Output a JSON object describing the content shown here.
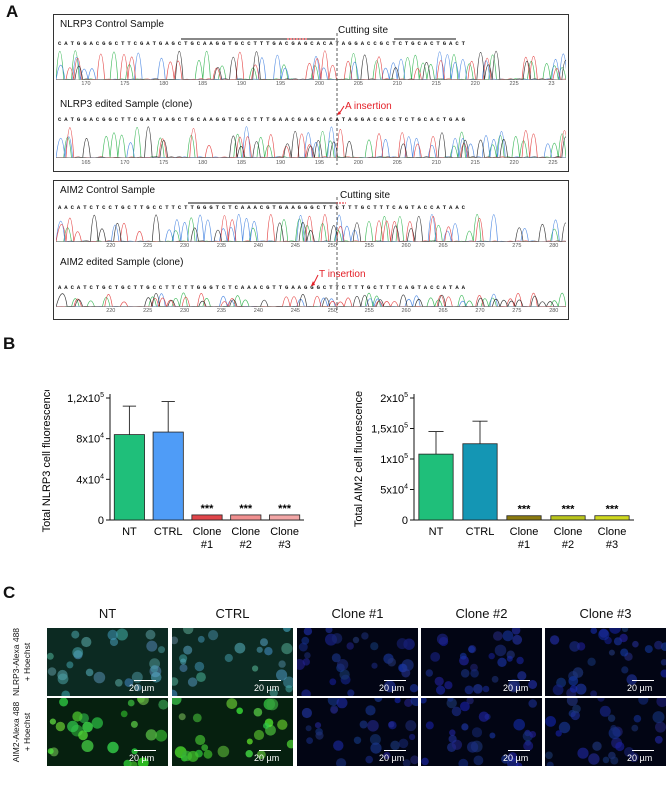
{
  "panelA": {
    "letter": "A",
    "nlrp3": {
      "control_title": "NLRP3 Control Sample",
      "edited_title": "NLRP3 edited Sample (clone)",
      "cutting_site": "Cutting site",
      "insertion": "A insertion",
      "control_seq": "CATGGACGGCTTCGATGAGCTGCAAGGTGCCTTTGACGAGCACATAGGACCGCTCTGCACTGACT",
      "edited_seq": "CATGGACGGCTTCGATGAGCTGCAAGGTGCCTTTGAACGAGCACATAGGACCGCTCTGCACTGAG",
      "control_ticks": [
        "170",
        "175",
        "180",
        "185",
        "190",
        "195",
        "200",
        "205",
        "210",
        "215",
        "220",
        "225",
        "23"
      ],
      "edited_ticks": [
        "165",
        "170",
        "175",
        "180",
        "185",
        "190",
        "195",
        "200",
        "205",
        "210",
        "215",
        "220",
        "225"
      ]
    },
    "aim2": {
      "control_title": "AIM2 Control Sample",
      "edited_title": "AIM2 edited Sample (clone)",
      "cutting_site": "Cutting site",
      "insertion": "T insertion",
      "control_seq": "AACATCTCCTGCTTGCCTTCTTGGGTCTCAAACGTGAAGGGCTTCTTTGCTTTCAGTACCATAAC",
      "edited_seq": "AACATCTGCTGCTTGCCTTCTTGGGTCTCAAACGTTGAAGGGCTTCTTTGCTTTCAGTACCATAA",
      "control_ticks": [
        "220",
        "225",
        "230",
        "235",
        "240",
        "245",
        "250",
        "255",
        "260",
        "265",
        "270",
        "275",
        "280"
      ],
      "edited_ticks": [
        "220",
        "225",
        "230",
        "235",
        "240",
        "245",
        "250",
        "255",
        "260",
        "265",
        "270",
        "275",
        "280"
      ]
    }
  },
  "panelB": {
    "letter": "B",
    "significance": "***"
  },
  "chart_data": [
    {
      "type": "bar",
      "ylabel": "Total  NLRP3 cell fluorescence",
      "categories": [
        "NT",
        "CTRL",
        "Clone #1",
        "Clone #2",
        "Clone #3"
      ],
      "category_lines": [
        [
          "NT"
        ],
        [
          "CTRL"
        ],
        [
          "Clone",
          "#1"
        ],
        [
          "Clone",
          "#2"
        ],
        [
          "Clone",
          "#3"
        ]
      ],
      "values": [
        84000,
        86500,
        5000,
        5000,
        5000
      ],
      "errors": [
        28000,
        30000,
        500,
        500,
        500
      ],
      "significance": [
        "",
        "",
        "***",
        "***",
        "***"
      ],
      "colors": [
        "#1fbf7a",
        "#4f9cf7",
        "#e0454a",
        "#f08f8f",
        "#f2a6a6"
      ],
      "ylim": [
        0,
        120000
      ],
      "yticks": [
        {
          "base": "0",
          "exp": ""
        },
        {
          "base": "4x10",
          "exp": "4"
        },
        {
          "base": "8x10",
          "exp": "4"
        },
        {
          "base": "1,2x10",
          "exp": "5"
        }
      ],
      "ytick_values": [
        0,
        40000,
        80000,
        120000
      ]
    },
    {
      "type": "bar",
      "ylabel": "Total  AIM2 cell fluorescence",
      "categories": [
        "NT",
        "CTRL",
        "Clone #1",
        "Clone #2",
        "Clone #3"
      ],
      "category_lines": [
        [
          "NT"
        ],
        [
          "CTRL"
        ],
        [
          "Clone",
          "#1"
        ],
        [
          "Clone",
          "#2"
        ],
        [
          "Clone",
          "#3"
        ]
      ],
      "values": [
        108000,
        125000,
        7000,
        7000,
        7000
      ],
      "errors": [
        37000,
        37000,
        1000,
        1000,
        1000
      ],
      "significance": [
        "",
        "",
        "***",
        "***",
        "***"
      ],
      "colors": [
        "#1fbf7a",
        "#1496b4",
        "#8a7a10",
        "#b9c41c",
        "#cfd81f"
      ],
      "ylim": [
        0,
        200000
      ],
      "yticks": [
        {
          "base": "0",
          "exp": ""
        },
        {
          "base": "5x10",
          "exp": "4"
        },
        {
          "base": "1x10",
          "exp": "5"
        },
        {
          "base": "1,5x10",
          "exp": "5"
        },
        {
          "base": "2x10",
          "exp": "5"
        }
      ],
      "ytick_values": [
        0,
        50000,
        100000,
        150000,
        200000
      ]
    }
  ],
  "panelC": {
    "letter": "C",
    "columns": [
      "NT",
      "CTRL",
      "Clone #1",
      "Clone #2",
      "Clone #3"
    ],
    "rows": [
      {
        "line1": "NLRP3-Alexa 488",
        "line2": "+ Hoechst"
      },
      {
        "line1": "AIM2-Alexa 488",
        "line2": "+ Hoechst"
      }
    ],
    "scale_bar": "20 µm"
  }
}
